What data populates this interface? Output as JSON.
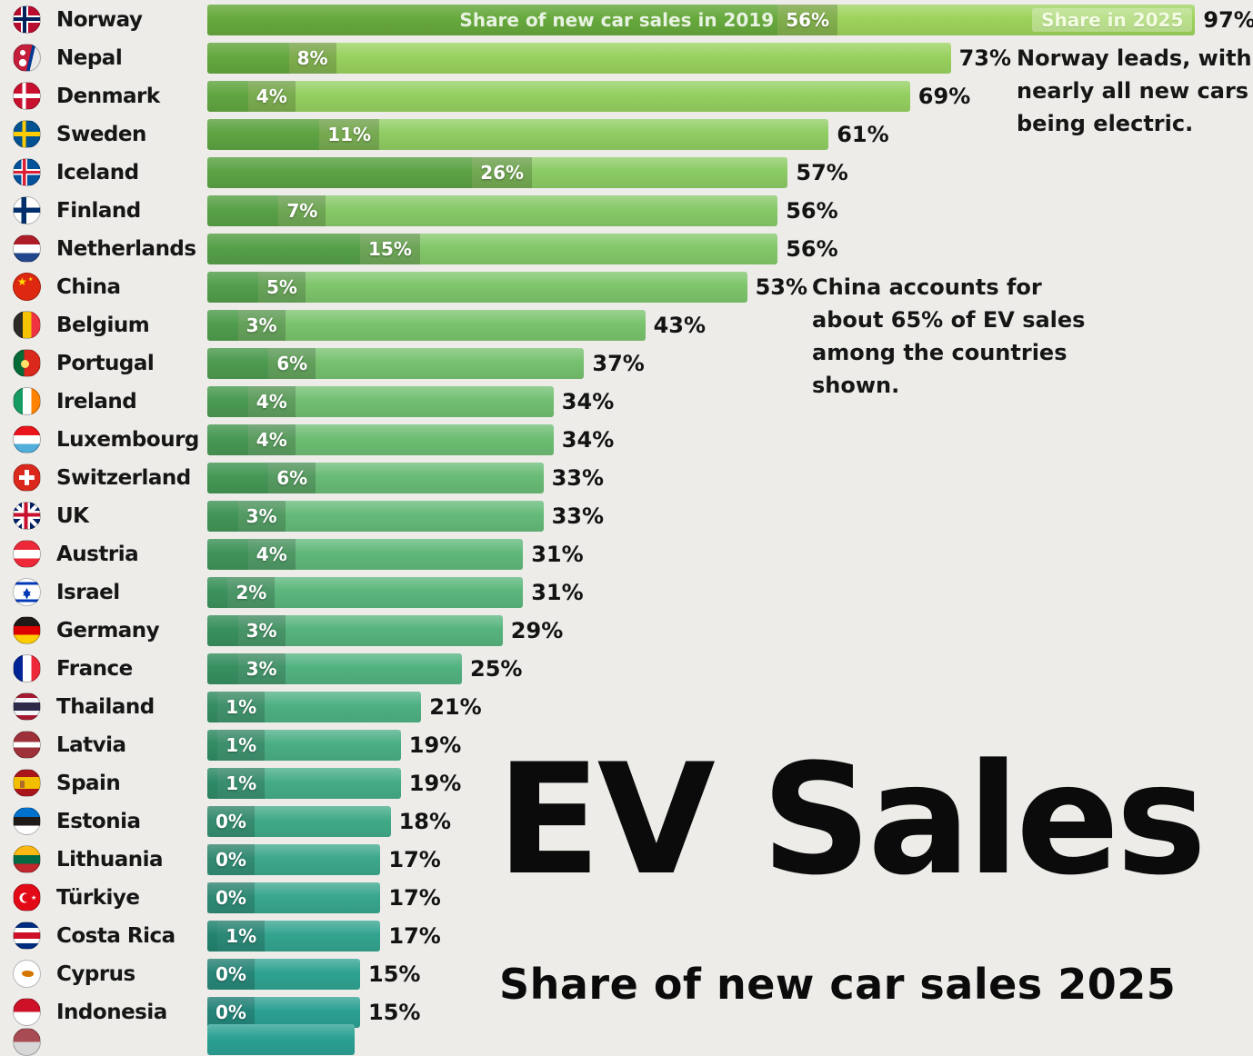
{
  "chart_data": {
    "type": "bar",
    "orientation": "horizontal",
    "unit": "%",
    "value_range": [
      0,
      100
    ],
    "title": "EV Sales",
    "subtitle": "Share of new car sales 2025",
    "legend_2019": "Share of new car sales in 2019",
    "legend_2025": "Share in 2025",
    "annotations": {
      "norway": "Norway leads, with nearly all new cars being electric.",
      "china": "China accounts for about 65% of EV sales among the countries shown."
    },
    "rows": [
      {
        "country": "Norway",
        "flag": "norway",
        "share_2019": 56,
        "share_2025": 97
      },
      {
        "country": "Nepal",
        "flag": "nepal",
        "share_2019": 8,
        "share_2025": 73
      },
      {
        "country": "Denmark",
        "flag": "denmark",
        "share_2019": 4,
        "share_2025": 69
      },
      {
        "country": "Sweden",
        "flag": "sweden",
        "share_2019": 11,
        "share_2025": 61
      },
      {
        "country": "Iceland",
        "flag": "iceland",
        "share_2019": 26,
        "share_2025": 57
      },
      {
        "country": "Finland",
        "flag": "finland",
        "share_2019": 7,
        "share_2025": 56
      },
      {
        "country": "Netherlands",
        "flag": "netherlands",
        "share_2019": 15,
        "share_2025": 56
      },
      {
        "country": "China",
        "flag": "china",
        "share_2019": 5,
        "share_2025": 53
      },
      {
        "country": "Belgium",
        "flag": "belgium",
        "share_2019": 3,
        "share_2025": 43
      },
      {
        "country": "Portugal",
        "flag": "portugal",
        "share_2019": 6,
        "share_2025": 37
      },
      {
        "country": "Ireland",
        "flag": "ireland",
        "share_2019": 4,
        "share_2025": 34
      },
      {
        "country": "Luxembourg",
        "flag": "luxembourg",
        "share_2019": 4,
        "share_2025": 34
      },
      {
        "country": "Switzerland",
        "flag": "switzerland",
        "share_2019": 6,
        "share_2025": 33
      },
      {
        "country": "UK",
        "flag": "uk",
        "share_2019": 3,
        "share_2025": 33
      },
      {
        "country": "Austria",
        "flag": "austria",
        "share_2019": 4,
        "share_2025": 31
      },
      {
        "country": "Israel",
        "flag": "israel",
        "share_2019": 2,
        "share_2025": 31
      },
      {
        "country": "Germany",
        "flag": "germany",
        "share_2019": 3,
        "share_2025": 29
      },
      {
        "country": "France",
        "flag": "france",
        "share_2019": 3,
        "share_2025": 25
      },
      {
        "country": "Thailand",
        "flag": "thailand",
        "share_2019": 1,
        "share_2025": 21
      },
      {
        "country": "Latvia",
        "flag": "latvia",
        "share_2019": 1,
        "share_2025": 19
      },
      {
        "country": "Spain",
        "flag": "spain",
        "share_2019": 1,
        "share_2025": 19
      },
      {
        "country": "Estonia",
        "flag": "estonia",
        "share_2019": 0,
        "share_2025": 18
      },
      {
        "country": "Lithuania",
        "flag": "lithuania",
        "share_2019": 0,
        "share_2025": 17
      },
      {
        "country": "Türkiye",
        "flag": "turkiye",
        "share_2019": 0,
        "share_2025": 17
      },
      {
        "country": "Costa Rica",
        "flag": "costa-rica",
        "share_2019": 1,
        "share_2025": 17
      },
      {
        "country": "Cyprus",
        "flag": "cyprus",
        "share_2019": 0,
        "share_2025": 15
      },
      {
        "country": "Indonesia",
        "flag": "indonesia",
        "share_2019": 0,
        "share_2025": 15
      }
    ],
    "partial_row": {
      "width_pct": 14.5,
      "flag": "partial"
    },
    "colors": {
      "background": "#edece9",
      "text": "#141414",
      "bar_light_top": "#9dd35c",
      "bar_light_bottom": "#2ba093",
      "bar_dark_top": "#67a93d",
      "bar_dark_bottom": "#1d8173"
    }
  }
}
